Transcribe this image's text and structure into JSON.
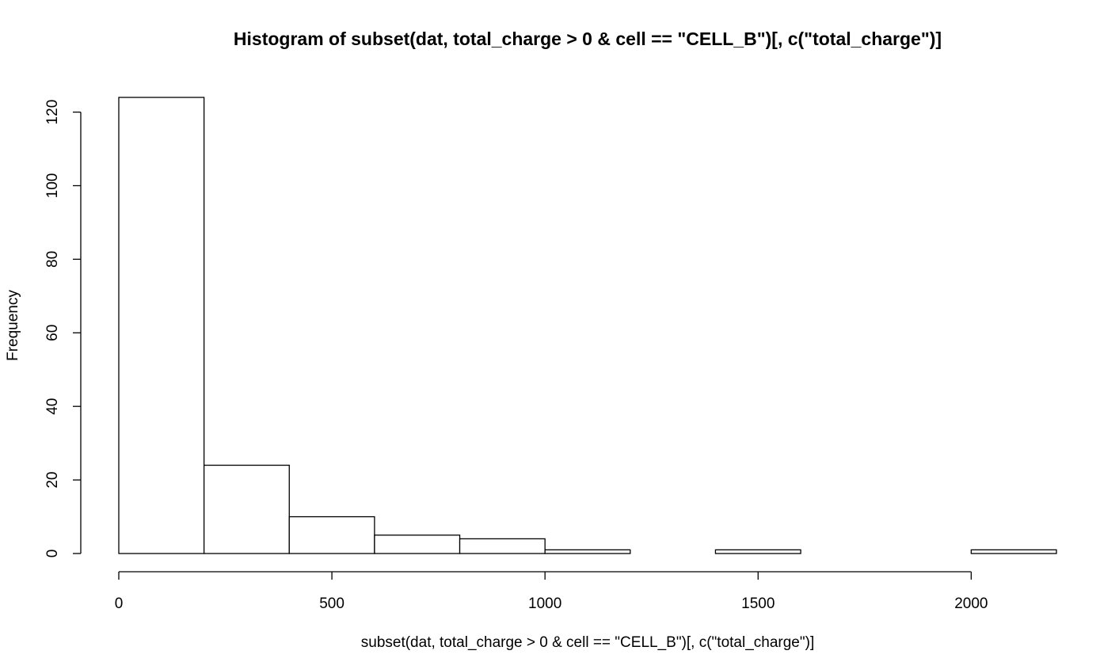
{
  "chart_data": {
    "type": "bar",
    "subtype": "histogram",
    "title": "Histogram of subset(dat, total_charge > 0 & cell == \"CELL_B\")[, c(\"total_charge\")]",
    "xlabel": "subset(dat, total_charge > 0 & cell == \"CELL_B\")[, c(\"total_charge\")]",
    "ylabel": "Frequency",
    "bins": [
      {
        "x0": 0,
        "x1": 200,
        "count": 124
      },
      {
        "x0": 200,
        "x1": 400,
        "count": 24
      },
      {
        "x0": 400,
        "x1": 600,
        "count": 10
      },
      {
        "x0": 600,
        "x1": 800,
        "count": 5
      },
      {
        "x0": 800,
        "x1": 1000,
        "count": 4
      },
      {
        "x0": 1000,
        "x1": 1200,
        "count": 1
      },
      {
        "x0": 1200,
        "x1": 1400,
        "count": 0
      },
      {
        "x0": 1400,
        "x1": 1600,
        "count": 1
      },
      {
        "x0": 1600,
        "x1": 1800,
        "count": 0
      },
      {
        "x0": 1800,
        "x1": 2000,
        "count": 0
      },
      {
        "x0": 2000,
        "x1": 2200,
        "count": 1
      }
    ],
    "xticks": [
      0,
      500,
      1000,
      1500,
      2000
    ],
    "yticks": [
      0,
      20,
      40,
      60,
      80,
      100,
      120
    ],
    "xlim": [
      0,
      2200
    ],
    "ylim": [
      0,
      124
    ],
    "grid": false,
    "legend": "none",
    "bar_fill": "#ffffff",
    "bar_stroke": "#000000"
  }
}
